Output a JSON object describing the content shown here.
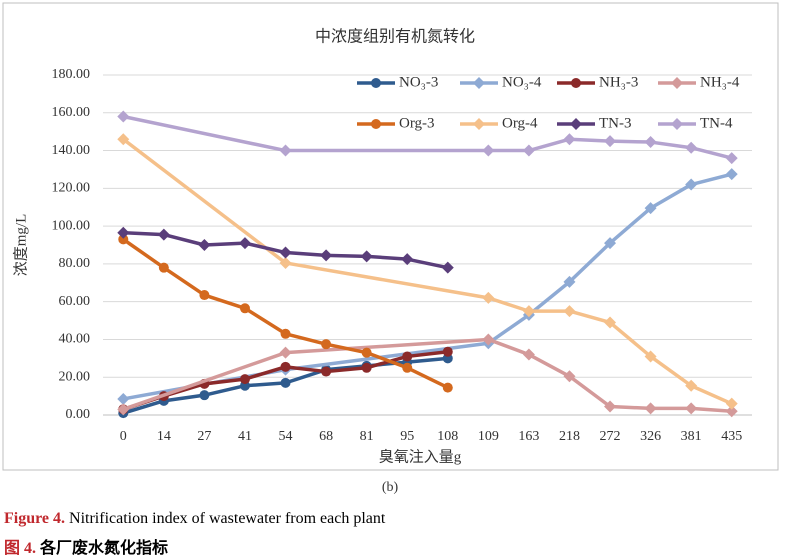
{
  "chart_data": {
    "type": "line",
    "title": "中浓度组别有机氮转化",
    "subcaption": "(b)",
    "x_label": "臭氧注入量g",
    "y_label": "浓度mg/L",
    "categories": [
      "0",
      "14",
      "27",
      "41",
      "54",
      "68",
      "81",
      "95",
      "108",
      "109",
      "163",
      "218",
      "272",
      "326",
      "381",
      "435"
    ],
    "ylim": [
      0,
      180
    ],
    "yticks": [
      {
        "value": 0,
        "label": "0.00"
      },
      {
        "value": 20,
        "label": "20.00"
      },
      {
        "value": 40,
        "label": "40.00"
      },
      {
        "value": 60,
        "label": "60.00"
      },
      {
        "value": 80,
        "label": "80.00"
      },
      {
        "value": 100,
        "label": "100.00"
      },
      {
        "value": 120,
        "label": "120.00"
      },
      {
        "value": 140,
        "label": "140.00"
      },
      {
        "value": 160,
        "label": "160.00"
      },
      {
        "value": 180,
        "label": "180.00"
      }
    ],
    "grid": true,
    "legend": "top-right",
    "span_gaps": true,
    "series": [
      {
        "name": "NO₃-3",
        "color": "#2f5b8e",
        "marker": "circle",
        "values": [
          1,
          7.5,
          10.5,
          15.5,
          17,
          24,
          26,
          28,
          30,
          null,
          null,
          null,
          null,
          null,
          null,
          null
        ]
      },
      {
        "name": "NO₃-4",
        "color": "#8eaad4",
        "marker": "diamond",
        "values": [
          8.5,
          null,
          null,
          null,
          24,
          null,
          null,
          null,
          null,
          38,
          53,
          70.5,
          91,
          109.5,
          122,
          127.5
        ]
      },
      {
        "name": "NH₃-3",
        "color": "#8b2a2a",
        "marker": "circle",
        "values": [
          3,
          10,
          16.5,
          19,
          25.5,
          23,
          25,
          31,
          33.5,
          null,
          null,
          null,
          null,
          null,
          null,
          null
        ]
      },
      {
        "name": "NH₃-4",
        "color": "#d49a9a",
        "marker": "diamond",
        "values": [
          3,
          null,
          null,
          null,
          33,
          null,
          null,
          null,
          null,
          40,
          32,
          20.5,
          4.5,
          3.5,
          3.5,
          2
        ]
      },
      {
        "name": "Org-3",
        "color": "#d4691e",
        "marker": "circle",
        "values": [
          93,
          78,
          63.5,
          56.5,
          43,
          37.5,
          33,
          25,
          14.5,
          null,
          null,
          null,
          null,
          null,
          null,
          null
        ]
      },
      {
        "name": "Org-4",
        "color": "#f5c08a",
        "marker": "diamond",
        "values": [
          146,
          null,
          null,
          null,
          80.5,
          null,
          null,
          null,
          null,
          62,
          55,
          55,
          49,
          31,
          15.5,
          6
        ]
      },
      {
        "name": "TN-3",
        "color": "#5a3e7a",
        "marker": "diamond",
        "values": [
          96.5,
          95.5,
          90,
          91,
          86,
          84.5,
          84,
          82.5,
          78,
          null,
          null,
          null,
          null,
          null,
          null,
          null
        ]
      },
      {
        "name": "TN-4",
        "color": "#b4a3cf",
        "marker": "diamond",
        "values": [
          158,
          null,
          null,
          null,
          140,
          null,
          null,
          null,
          null,
          140,
          140,
          146,
          145,
          144.5,
          141.5,
          136
        ]
      }
    ]
  },
  "caption": {
    "en_label": "Figure 4.",
    "en_text": " Nitrification index of wastewater from each plant",
    "zh_label": "图 4.",
    "zh_text": " 各厂废水氮化指标"
  }
}
